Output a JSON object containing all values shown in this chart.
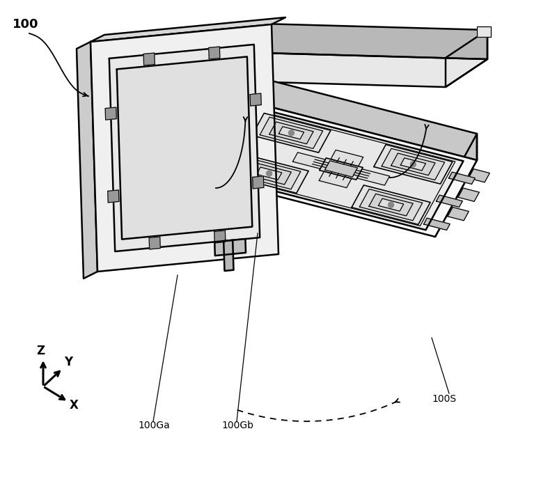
{
  "bg_color": "#ffffff",
  "line_color": "#000000",
  "label_100": "100",
  "label_100Ga": "100Ga",
  "label_100Gb": "100Gb",
  "label_100S": "100S",
  "fig_width": 8.0,
  "fig_height": 6.85,
  "dpi": 100
}
